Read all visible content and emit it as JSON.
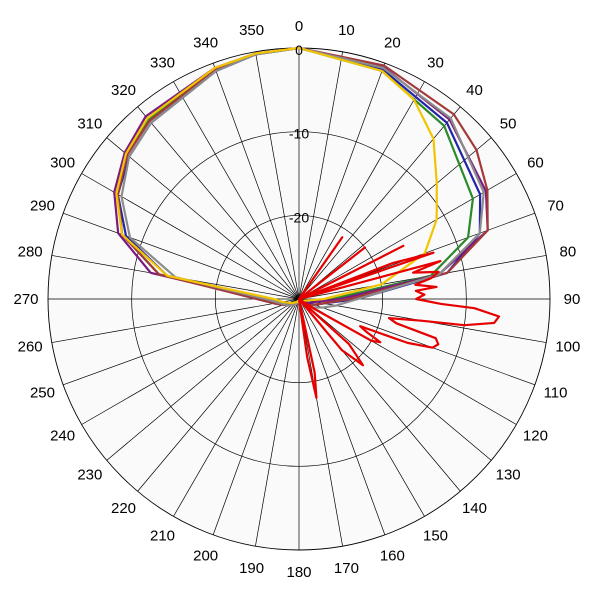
{
  "chart_data": {
    "type": "line",
    "subtype": "polar",
    "title": "",
    "angle_direction": "clockwise",
    "zero_at": "top",
    "angle_step": 10,
    "angle_ticks": [
      0,
      10,
      20,
      30,
      40,
      50,
      60,
      70,
      80,
      90,
      100,
      110,
      120,
      130,
      140,
      150,
      160,
      170,
      180,
      190,
      200,
      210,
      220,
      230,
      240,
      250,
      260,
      270,
      280,
      290,
      300,
      310,
      320,
      330,
      340,
      350
    ],
    "radial_range": [
      -30,
      0
    ],
    "radial_ticks": [
      0,
      -10,
      -20
    ],
    "radial_tick_labels": [
      "0",
      "-10",
      "-20"
    ],
    "grid": true,
    "legend": "none",
    "plot_background": "#fafafa",
    "series": [
      {
        "color": "#2323a8",
        "points": [
          [
            0,
            0
          ],
          [
            20,
            -0.8
          ],
          [
            40,
            -2.5
          ],
          [
            60,
            -5
          ],
          [
            70,
            -7
          ],
          [
            80,
            -12
          ],
          [
            90,
            -23
          ],
          [
            100,
            -27
          ],
          [
            110,
            -28
          ],
          [
            120,
            -29
          ],
          [
            140,
            -29.5
          ],
          [
            160,
            -29.5
          ],
          [
            180,
            -29.5
          ],
          [
            200,
            -29.5
          ],
          [
            220,
            -29
          ],
          [
            240,
            -28.5
          ],
          [
            260,
            -27
          ],
          [
            270,
            -25
          ],
          [
            280,
            -14
          ],
          [
            290,
            -8
          ],
          [
            300,
            -5
          ],
          [
            310,
            -3.5
          ],
          [
            320,
            -2.5
          ],
          [
            340,
            -1
          ],
          [
            350,
            -0.3
          ],
          [
            360,
            0
          ]
        ]
      },
      {
        "color": "#2a8a2a",
        "points": [
          [
            0,
            0
          ],
          [
            20,
            -1
          ],
          [
            40,
            -3
          ],
          [
            60,
            -6
          ],
          [
            70,
            -8.5
          ],
          [
            80,
            -14
          ],
          [
            90,
            -26
          ],
          [
            100,
            -29
          ],
          [
            120,
            -29.5
          ],
          [
            140,
            -29.8
          ],
          [
            160,
            -29.8
          ],
          [
            180,
            -29.8
          ],
          [
            200,
            -29.8
          ],
          [
            220,
            -29.5
          ],
          [
            240,
            -29
          ],
          [
            260,
            -27.5
          ],
          [
            270,
            -26
          ],
          [
            280,
            -13
          ],
          [
            290,
            -7.5
          ],
          [
            300,
            -5
          ],
          [
            310,
            -3
          ],
          [
            320,
            -2
          ],
          [
            340,
            -0.8
          ],
          [
            350,
            -0.3
          ],
          [
            360,
            0
          ]
        ]
      },
      {
        "color": "#7a1a80",
        "points": [
          [
            0,
            0
          ],
          [
            20,
            -0.5
          ],
          [
            40,
            -2
          ],
          [
            60,
            -4.2
          ],
          [
            70,
            -6
          ],
          [
            80,
            -13
          ],
          [
            90,
            -25
          ],
          [
            100,
            -28
          ],
          [
            120,
            -29
          ],
          [
            140,
            -29.5
          ],
          [
            160,
            -29.5
          ],
          [
            180,
            -29.5
          ],
          [
            200,
            -29.5
          ],
          [
            220,
            -29
          ],
          [
            240,
            -28.5
          ],
          [
            260,
            -27
          ],
          [
            270,
            -25.5
          ],
          [
            280,
            -12
          ],
          [
            290,
            -7
          ],
          [
            300,
            -4.5
          ],
          [
            310,
            -2.8
          ],
          [
            320,
            -1.5
          ],
          [
            340,
            -0.6
          ],
          [
            350,
            -0.2
          ],
          [
            360,
            0
          ]
        ]
      },
      {
        "color": "#a33a3a",
        "points": [
          [
            0,
            0
          ],
          [
            20,
            -0.3
          ],
          [
            40,
            -1.2
          ],
          [
            50,
            -2.3
          ],
          [
            60,
            -4
          ],
          [
            70,
            -6
          ],
          [
            80,
            -12
          ],
          [
            90,
            -24
          ],
          [
            100,
            -27
          ],
          [
            120,
            -28.5
          ],
          [
            140,
            -29.2
          ],
          [
            160,
            -29.5
          ],
          [
            180,
            -29.5
          ],
          [
            200,
            -29.5
          ],
          [
            220,
            -29
          ],
          [
            240,
            -28.5
          ],
          [
            260,
            -27
          ],
          [
            270,
            -25
          ],
          [
            280,
            -13
          ],
          [
            290,
            -7.5
          ],
          [
            300,
            -5
          ],
          [
            310,
            -3.2
          ],
          [
            320,
            -2.2
          ],
          [
            340,
            -0.8
          ],
          [
            350,
            -0.3
          ],
          [
            360,
            0
          ]
        ]
      },
      {
        "color": "#8c8c8c",
        "points": [
          [
            0,
            0
          ],
          [
            20,
            -0.6
          ],
          [
            40,
            -1.8
          ],
          [
            60,
            -4.5
          ],
          [
            70,
            -7
          ],
          [
            80,
            -13
          ],
          [
            90,
            -23
          ],
          [
            100,
            -25.5
          ],
          [
            110,
            -27
          ],
          [
            120,
            -28
          ],
          [
            140,
            -29.2
          ],
          [
            160,
            -29.5
          ],
          [
            180,
            -29.5
          ],
          [
            200,
            -29.5
          ],
          [
            220,
            -29
          ],
          [
            240,
            -28.5
          ],
          [
            260,
            -27.5
          ],
          [
            270,
            -26
          ],
          [
            280,
            -15
          ],
          [
            290,
            -8.5
          ],
          [
            300,
            -5.5
          ],
          [
            310,
            -3.5
          ],
          [
            320,
            -2.5
          ],
          [
            340,
            -1
          ],
          [
            350,
            -0.3
          ],
          [
            360,
            0
          ]
        ]
      },
      {
        "color": "#f2c500",
        "points": [
          [
            0,
            0
          ],
          [
            20,
            -1
          ],
          [
            30,
            -2.5
          ],
          [
            40,
            -5
          ],
          [
            50,
            -8.5
          ],
          [
            60,
            -11
          ],
          [
            70,
            -14
          ],
          [
            80,
            -20
          ],
          [
            90,
            -27
          ],
          [
            100,
            -29
          ],
          [
            120,
            -29.5
          ],
          [
            140,
            -29.8
          ],
          [
            160,
            -29.8
          ],
          [
            180,
            -29.8
          ],
          [
            200,
            -29.8
          ],
          [
            220,
            -29.5
          ],
          [
            240,
            -29
          ],
          [
            260,
            -28
          ],
          [
            270,
            -27
          ],
          [
            280,
            -14
          ],
          [
            290,
            -7.5
          ],
          [
            300,
            -4.8
          ],
          [
            310,
            -3
          ],
          [
            320,
            -1.8
          ],
          [
            340,
            -0.6
          ],
          [
            350,
            -0.2
          ],
          [
            360,
            0
          ]
        ]
      },
      {
        "color": "#e60000",
        "points": [
          [
            0,
            -30
          ],
          [
            4,
            -30
          ],
          [
            6,
            -30
          ],
          [
            9,
            -30
          ],
          [
            12,
            -30
          ],
          [
            18,
            -30
          ],
          [
            24,
            -30
          ],
          [
            30,
            -30
          ],
          [
            35,
            -21
          ],
          [
            40,
            -30
          ],
          [
            44,
            -30
          ],
          [
            48,
            -30
          ],
          [
            52,
            -20
          ],
          [
            57,
            -30
          ],
          [
            60,
            -30
          ],
          [
            63,
            -16
          ],
          [
            66,
            -30
          ],
          [
            69,
            -18
          ],
          [
            71,
            -13
          ],
          [
            73,
            -30
          ],
          [
            75,
            -12.5
          ],
          [
            77,
            -16
          ],
          [
            79,
            -13
          ],
          [
            81,
            -14
          ],
          [
            83,
            -16
          ],
          [
            85,
            -13.5
          ],
          [
            86,
            -16
          ],
          [
            88,
            -15
          ],
          [
            90,
            -16
          ],
          [
            92,
            -13
          ],
          [
            93,
            -9
          ],
          [
            95,
            -6
          ],
          [
            97,
            -6.5
          ],
          [
            99,
            -10
          ],
          [
            100,
            -15
          ],
          [
            102,
            -19
          ],
          [
            104,
            -18
          ],
          [
            106,
            -13
          ],
          [
            108,
            -12.5
          ],
          [
            110,
            -13
          ],
          [
            112,
            -16
          ],
          [
            114,
            -22
          ],
          [
            116,
            -21
          ],
          [
            118,
            -19
          ],
          [
            120,
            -20
          ],
          [
            123,
            -28
          ],
          [
            128,
            -30
          ],
          [
            132,
            -22
          ],
          [
            136,
            -19
          ],
          [
            140,
            -22
          ],
          [
            146,
            -30
          ],
          [
            150,
            -30
          ],
          [
            155,
            -30
          ],
          [
            160,
            -30
          ],
          [
            165,
            -30
          ],
          [
            168,
            -21
          ],
          [
            170,
            -18
          ],
          [
            172,
            -23
          ],
          [
            175,
            -30
          ],
          [
            180,
            -30
          ],
          [
            190,
            -30
          ],
          [
            200,
            -30
          ],
          [
            210,
            -30
          ],
          [
            220,
            -30
          ],
          [
            240,
            -30
          ],
          [
            260,
            -30
          ],
          [
            280,
            -30
          ],
          [
            300,
            -30
          ],
          [
            320,
            -30
          ],
          [
            340,
            -30
          ],
          [
            360,
            -30
          ]
        ]
      }
    ]
  }
}
